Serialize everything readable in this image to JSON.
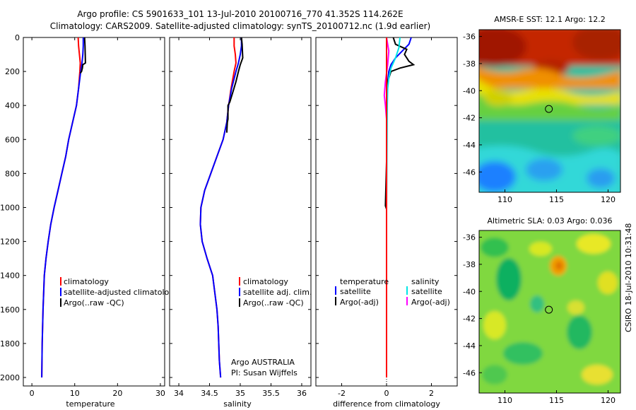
{
  "header": {
    "line1": "Argo profile: CS 5901633_101 13-Jul-2010 20100716_770 41.352S 114.262E",
    "line2": "Climatology: CARS2009. Satellite-adjusted climatology: synTS_20100712.nc (1.9d earlier)"
  },
  "colors": {
    "climatology": "#ff0000",
    "satellite": "#0000ff",
    "argo": "#000000",
    "sal_satellite": "#00e5e5",
    "sal_argo": "#ff00ff"
  },
  "chart_data": [
    {
      "type": "line",
      "id": "temperature",
      "xlabel": "temperature",
      "ylabel": "",
      "xlim": [
        -2,
        31
      ],
      "ylim": [
        2050,
        0
      ],
      "xticks": [
        "0",
        "10",
        "20",
        "30"
      ],
      "xtick_values": [
        0,
        10,
        20,
        30
      ],
      "yticks": [
        "0",
        "200",
        "400",
        "600",
        "800",
        "1000",
        "1200",
        "1400",
        "1600",
        "1800",
        "2000"
      ],
      "ytick_values": [
        0,
        200,
        400,
        600,
        800,
        1000,
        1200,
        1400,
        1600,
        1800,
        2000
      ],
      "legend": [
        "climatology",
        "satellite-adjusted climatology",
        "Argo(..raw -QC)"
      ],
      "series": [
        {
          "name": "climatology",
          "color": "#ff0000",
          "x": [
            10.8,
            10.9,
            11.1,
            11.3,
            11.2,
            10.9,
            10.4,
            9.5,
            8.6,
            7.9,
            7.0,
            6.1,
            5.2,
            4.4,
            3.8,
            3.3,
            2.9,
            2.6,
            2.4,
            2.3
          ],
          "y": [
            0,
            50,
            100,
            150,
            200,
            300,
            400,
            500,
            600,
            700,
            800,
            900,
            1000,
            1100,
            1200,
            1300,
            1400,
            1600,
            1800,
            2000
          ]
        },
        {
          "name": "satellite-adjusted climatology",
          "color": "#0000ff",
          "x": [
            12.0,
            12.0,
            11.9,
            11.7,
            11.4,
            10.9,
            10.4,
            9.5,
            8.6,
            7.9,
            7.0,
            6.1,
            5.2,
            4.4,
            3.8,
            3.3,
            2.9,
            2.6,
            2.4,
            2.3
          ],
          "y": [
            0,
            50,
            100,
            150,
            200,
            300,
            400,
            500,
            600,
            700,
            800,
            900,
            1000,
            1100,
            1200,
            1300,
            1400,
            1600,
            1800,
            2000
          ]
        },
        {
          "name": "Argo(..raw -QC)",
          "color": "#000000",
          "x": [
            12.3,
            12.4,
            12.5,
            11.9,
            11.8,
            11.6,
            11.3
          ],
          "y": [
            0,
            50,
            150,
            160,
            180,
            200,
            210
          ]
        }
      ]
    },
    {
      "type": "line",
      "id": "salinity",
      "xlabel": "salinity",
      "xlim": [
        33.85,
        36.15
      ],
      "ylim": [
        2050,
        0
      ],
      "xticks": [
        "34",
        "34.5",
        "35",
        "35.5",
        "36"
      ],
      "xtick_values": [
        34,
        34.5,
        35,
        35.5,
        36
      ],
      "legend": [
        "climatology",
        "satellite adj. clim.",
        "Argo(..raw -QC)"
      ],
      "annotation_line1": "Argo AUSTRALIA",
      "annotation_line2": "PI: Susan Wijffels",
      "series": [
        {
          "name": "climatology",
          "color": "#ff0000",
          "x": [
            34.9,
            34.9,
            34.92,
            34.93,
            34.9,
            34.85,
            34.81,
            34.78,
            34.72,
            34.62,
            34.52,
            34.42,
            34.36,
            34.35,
            34.38,
            34.46,
            34.55,
            34.62,
            34.64,
            34.66,
            34.68
          ],
          "y": [
            0,
            50,
            100,
            150,
            200,
            300,
            400,
            500,
            600,
            700,
            800,
            900,
            1000,
            1100,
            1200,
            1300,
            1400,
            1600,
            1700,
            1900,
            2000
          ]
        },
        {
          "name": "satellite adj. clim.",
          "color": "#0000ff",
          "x": [
            35.02,
            35.02,
            35.0,
            34.97,
            34.93,
            34.86,
            34.81,
            34.78,
            34.72,
            34.62,
            34.52,
            34.42,
            34.36,
            34.35,
            34.38,
            34.46,
            34.55,
            34.62,
            34.64,
            34.66,
            34.68
          ],
          "y": [
            0,
            50,
            100,
            150,
            200,
            300,
            400,
            500,
            600,
            700,
            800,
            900,
            1000,
            1100,
            1200,
            1300,
            1400,
            1600,
            1700,
            1900,
            2000
          ]
        },
        {
          "name": "Argo(..raw -QC)",
          "color": "#000000",
          "x": [
            35.02,
            35.03,
            35.04,
            35.0,
            34.97,
            34.93,
            34.88,
            34.83,
            34.8,
            34.8,
            34.79,
            34.78
          ],
          "y": [
            0,
            40,
            120,
            160,
            200,
            260,
            320,
            380,
            400,
            480,
            500,
            560
          ]
        }
      ]
    },
    {
      "type": "line",
      "id": "difference",
      "xlabel": "difference from climatology",
      "xlim": [
        -3.15,
        3.15
      ],
      "ylim": [
        2050,
        0
      ],
      "xticks": [
        "-2",
        "0",
        "2"
      ],
      "xtick_values": [
        -2,
        0,
        2
      ],
      "legend_temperature_title": "temperature",
      "legend_salinity_title": "salinity",
      "legend": [
        "satellite",
        "Argo(-adj)",
        "satellite",
        "Argo(-adj)"
      ],
      "series": [
        {
          "name": "temperature satellite",
          "color": "#0000ff",
          "x": [
            1.1,
            1.0,
            0.7,
            0.4,
            0.2,
            0.1,
            0.05,
            0.0,
            0.0,
            0.0
          ],
          "y": [
            0,
            40,
            80,
            120,
            160,
            200,
            260,
            400,
            1000,
            2000
          ]
        },
        {
          "name": "temperature Argo(-adj)",
          "color": "#000000",
          "x": [
            0.3,
            0.4,
            0.9,
            0.8,
            1.0,
            1.2,
            0.6,
            0.2,
            0.05,
            0.0,
            0.0,
            0.0,
            -0.05,
            0.0,
            0.0
          ],
          "y": [
            0,
            40,
            70,
            100,
            140,
            160,
            180,
            200,
            260,
            400,
            700,
            730,
            990,
            1010,
            2000
          ]
        },
        {
          "name": "salinity satellite",
          "color": "#00e5e5",
          "x": [
            0.6,
            0.55,
            0.4,
            0.2,
            0.1,
            0.05,
            0.03,
            0.0,
            0.0
          ],
          "y": [
            0,
            60,
            120,
            180,
            240,
            300,
            400,
            1000,
            2000
          ]
        },
        {
          "name": "salinity Argo(-adj)",
          "color": "#ff00ff",
          "x": [
            0.0,
            0.1,
            0.05,
            -0.05,
            -0.1,
            -0.05,
            0.0,
            0.0,
            0.0
          ],
          "y": [
            0,
            80,
            160,
            260,
            340,
            400,
            480,
            1000,
            2000
          ]
        },
        {
          "name": "climatology difference",
          "color": "#ff0000",
          "x": [
            0.0,
            0.0
          ],
          "y": [
            0,
            2000
          ]
        }
      ]
    },
    {
      "type": "heatmap",
      "id": "sst",
      "title": "AMSR-E SST: 12.1 Argo: 12.2",
      "xlim": [
        107.5,
        121.2
      ],
      "ylim": [
        -47.5,
        -35.5
      ],
      "xticks": [
        "110",
        "115",
        "120"
      ],
      "xtick_values": [
        110,
        115,
        120
      ],
      "yticks": [
        "-36",
        "-38",
        "-40",
        "-42",
        "-44",
        "-46"
      ],
      "ytick_values": [
        -36,
        -38,
        -40,
        -42,
        -44,
        -46
      ],
      "marker": {
        "lon": 114.26,
        "lat": -41.35
      }
    },
    {
      "type": "heatmap",
      "id": "sla",
      "title": "Altimetric SLA: 0.03 Argo: 0.036",
      "xlim": [
        107.5,
        121.2
      ],
      "ylim": [
        -47.5,
        -35.5
      ],
      "xticks": [
        "110",
        "115",
        "120"
      ],
      "xtick_values": [
        110,
        115,
        120
      ],
      "yticks": [
        "-36",
        "-38",
        "-40",
        "-42",
        "-44",
        "-46"
      ],
      "ytick_values": [
        -36,
        -38,
        -40,
        -42,
        -44,
        -46
      ],
      "marker": {
        "lon": 114.26,
        "lat": -41.35
      },
      "side_label": "CSIRO 18-Jul-2010 10:31:48"
    }
  ]
}
